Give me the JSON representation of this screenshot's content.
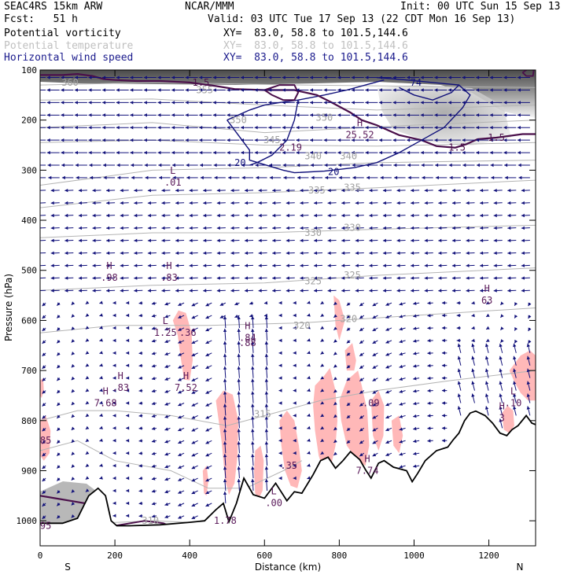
{
  "header": {
    "run": "SEAC4RS 15km ARW",
    "agency": "NCAR/MMM",
    "init": "Init: 00 UTC Sun 15 Sep 13",
    "fcst": "Fcst:   51 h",
    "valid": "Valid: 03 UTC Tue 17 Sep 13 (22 CDT Mon 16 Sep 13)"
  },
  "legend": [
    {
      "label": "Potential vorticity",
      "xy": "XY=  83.0, 58.8 to 101.5,144.6",
      "color": "#000000"
    },
    {
      "label": "Potential temperature",
      "xy": "XY=  83.0, 58.8 to 101.5,144.6",
      "color": "#c0c0c0"
    },
    {
      "label": "Horizontal wind speed",
      "xy": "XY=  83.0, 58.8 to 101.5,144.6",
      "color": "#1a1a8c"
    }
  ],
  "chart_data": {
    "type": "cross-section",
    "xlabel": "Distance (km)",
    "ylabel": "Pressure (hPa)",
    "xlim": [
      0,
      1325
    ],
    "ylim": [
      1050,
      100
    ],
    "x_ticks": [
      0,
      200,
      400,
      600,
      800,
      1000,
      1200
    ],
    "y_ticks": [
      100,
      200,
      300,
      400,
      500,
      600,
      700,
      800,
      900,
      1000
    ],
    "endpoints": {
      "left": "S",
      "right": "N"
    },
    "colors": {
      "pv": "#4a0f4a",
      "theta": "#b4b4b4",
      "wind": "#10107a",
      "rh": "#ffb8b8",
      "terrain": "#000000"
    },
    "theta_labels": [
      {
        "text": "360",
        "x": 80,
        "p": 125
      },
      {
        "text": "355",
        "x": 440,
        "p": 140
      },
      {
        "text": "350",
        "x": 530,
        "p": 200
      },
      {
        "text": "350",
        "x": 760,
        "p": 195
      },
      {
        "text": "345",
        "x": 620,
        "p": 240
      },
      {
        "text": "340",
        "x": 730,
        "p": 272
      },
      {
        "text": "340",
        "x": 825,
        "p": 272
      },
      {
        "text": "335",
        "x": 740,
        "p": 340
      },
      {
        "text": "335",
        "x": 835,
        "p": 335
      },
      {
        "text": "330",
        "x": 730,
        "p": 425
      },
      {
        "text": "330",
        "x": 835,
        "p": 415
      },
      {
        "text": "325",
        "x": 730,
        "p": 522
      },
      {
        "text": "325",
        "x": 835,
        "p": 510
      },
      {
        "text": "320",
        "x": 700,
        "p": 610
      },
      {
        "text": "320",
        "x": 825,
        "p": 597
      },
      {
        "text": "315",
        "x": 595,
        "p": 787
      },
      {
        "text": "310",
        "x": 295,
        "p": 1000
      }
    ],
    "pv_labels": [
      {
        "text": "1.5",
        "x": 430,
        "p": 125
      },
      {
        "text": "1.5",
        "x": 1115,
        "p": 255
      },
      {
        "text": "1.5",
        "x": 1220,
        "p": 235
      }
    ],
    "wind_labels": [
      {
        "text": "20",
        "x": 535,
        "p": 285
      },
      {
        "text": "20",
        "x": 785,
        "p": 303
      },
      {
        "text": "74",
        "x": 1005,
        "p": 125
      }
    ],
    "extrema": [
      {
        "kind": "L",
        "value": ".01",
        "x": 355,
        "p": 320
      },
      {
        "kind": "",
        "value": "2.19",
        "x": 670,
        "p": 250
      },
      {
        "kind": "H",
        "value": "25.52",
        "x": 855,
        "p": 225
      },
      {
        "kind": "H",
        "value": ".98",
        "x": 185,
        "p": 510
      },
      {
        "kind": "H",
        "value": ".83",
        "x": 345,
        "p": 510
      },
      {
        "kind": "L",
        "value": "1.25",
        "x": 335,
        "p": 620
      },
      {
        "kind": "",
        "value": ".36",
        "x": 395,
        "p": 620
      },
      {
        "kind": "H",
        "value": ".84",
        "x": 555,
        "p": 630
      },
      {
        "kind": "",
        "value": ".88",
        "x": 555,
        "p": 640
      },
      {
        "kind": "H",
        "value": "63",
        "x": 1195,
        "p": 555
      },
      {
        "kind": "H",
        "value": ".83",
        "x": 215,
        "p": 730
      },
      {
        "kind": "H",
        "value": "7.52",
        "x": 390,
        "p": 730
      },
      {
        "kind": "H",
        "value": "7.68",
        "x": 175,
        "p": 760
      },
      {
        "kind": "",
        "value": ".09",
        "x": 885,
        "p": 760
      },
      {
        "kind": "L",
        "value": ".10",
        "x": 1265,
        "p": 760
      },
      {
        "kind": "H",
        "value": "3",
        "x": 1235,
        "p": 790
      },
      {
        "kind": "",
        "value": ".35",
        "x": 665,
        "p": 885
      },
      {
        "kind": "H",
        "value": "7.74",
        "x": 875,
        "p": 895
      },
      {
        "kind": "L",
        "value": ".00",
        "x": 625,
        "p": 960
      },
      {
        "kind": "",
        "value": "85",
        "x": 15,
        "p": 835
      },
      {
        "kind": "",
        "value": "95",
        "x": 15,
        "p": 1005
      },
      {
        "kind": "",
        "value": "1.78",
        "x": 495,
        "p": 995
      }
    ],
    "terrain": [
      [
        0,
        1005
      ],
      [
        60,
        1005
      ],
      [
        100,
        995
      ],
      [
        130,
        950
      ],
      [
        155,
        935
      ],
      [
        175,
        950
      ],
      [
        190,
        1000
      ],
      [
        205,
        1010
      ],
      [
        240,
        1010
      ],
      [
        320,
        1008
      ],
      [
        400,
        1003
      ],
      [
        440,
        1000
      ],
      [
        470,
        978
      ],
      [
        490,
        965
      ],
      [
        505,
        1002
      ],
      [
        525,
        965
      ],
      [
        545,
        915
      ],
      [
        570,
        948
      ],
      [
        600,
        955
      ],
      [
        630,
        925
      ],
      [
        660,
        960
      ],
      [
        680,
        942
      ],
      [
        700,
        945
      ],
      [
        730,
        908
      ],
      [
        750,
        880
      ],
      [
        770,
        873
      ],
      [
        790,
        895
      ],
      [
        810,
        880
      ],
      [
        830,
        862
      ],
      [
        855,
        878
      ],
      [
        870,
        898
      ],
      [
        885,
        915
      ],
      [
        905,
        885
      ],
      [
        920,
        880
      ],
      [
        945,
        893
      ],
      [
        980,
        900
      ],
      [
        995,
        922
      ],
      [
        1010,
        905
      ],
      [
        1030,
        880
      ],
      [
        1060,
        860
      ],
      [
        1090,
        853
      ],
      [
        1105,
        838
      ],
      [
        1120,
        825
      ],
      [
        1135,
        800
      ],
      [
        1150,
        785
      ],
      [
        1165,
        781
      ],
      [
        1190,
        790
      ],
      [
        1210,
        805
      ],
      [
        1230,
        825
      ],
      [
        1248,
        830
      ],
      [
        1262,
        818
      ],
      [
        1278,
        810
      ],
      [
        1300,
        790
      ],
      [
        1315,
        805
      ],
      [
        1325,
        808
      ]
    ],
    "rh_regions": [
      [
        [
          355,
          600
        ],
        [
          370,
          580
        ],
        [
          390,
          585
        ],
        [
          405,
          625
        ],
        [
          408,
          680
        ],
        [
          400,
          720
        ],
        [
          385,
          718
        ],
        [
          375,
          670
        ],
        [
          368,
          630
        ]
      ],
      [
        [
          470,
          760
        ],
        [
          490,
          740
        ],
        [
          515,
          748
        ],
        [
          530,
          800
        ],
        [
          528,
          870
        ],
        [
          520,
          925
        ],
        [
          505,
          948
        ],
        [
          495,
          920
        ],
        [
          485,
          840
        ]
      ],
      [
        [
          575,
          860
        ],
        [
          590,
          850
        ],
        [
          598,
          880
        ],
        [
          595,
          940
        ],
        [
          585,
          955
        ],
        [
          575,
          945
        ],
        [
          572,
          900
        ]
      ],
      [
        [
          640,
          800
        ],
        [
          660,
          780
        ],
        [
          680,
          800
        ],
        [
          692,
          850
        ],
        [
          700,
          900
        ],
        [
          688,
          935
        ],
        [
          670,
          930
        ],
        [
          655,
          900
        ],
        [
          645,
          850
        ]
      ],
      [
        [
          735,
          730
        ],
        [
          760,
          710
        ],
        [
          775,
          695
        ],
        [
          790,
          740
        ],
        [
          795,
          800
        ],
        [
          790,
          850
        ],
        [
          775,
          900
        ],
        [
          760,
          905
        ],
        [
          745,
          870
        ],
        [
          735,
          820
        ],
        [
          730,
          770
        ]
      ],
      [
        [
          800,
          760
        ],
        [
          820,
          720
        ],
        [
          850,
          700
        ],
        [
          860,
          730
        ],
        [
          875,
          780
        ],
        [
          880,
          850
        ],
        [
          870,
          890
        ],
        [
          850,
          880
        ],
        [
          820,
          850
        ],
        [
          805,
          800
        ]
      ],
      [
        [
          815,
          660
        ],
        [
          835,
          645
        ],
        [
          845,
          680
        ],
        [
          840,
          700
        ],
        [
          820,
          700
        ]
      ],
      [
        [
          885,
          760
        ],
        [
          905,
          740
        ],
        [
          920,
          770
        ],
        [
          918,
          830
        ],
        [
          905,
          860
        ],
        [
          890,
          830
        ]
      ],
      [
        [
          940,
          800
        ],
        [
          960,
          790
        ],
        [
          970,
          830
        ],
        [
          960,
          865
        ],
        [
          945,
          850
        ]
      ],
      [
        [
          1020,
          895
        ],
        [
          1035,
          885
        ],
        [
          1040,
          905
        ],
        [
          1030,
          918
        ],
        [
          1020,
          912
        ]
      ],
      [
        [
          785,
          550
        ],
        [
          800,
          560
        ],
        [
          815,
          600
        ],
        [
          800,
          640
        ],
        [
          790,
          610
        ]
      ],
      [
        [
          1255,
          700
        ],
        [
          1285,
          670
        ],
        [
          1310,
          660
        ],
        [
          1325,
          670
        ],
        [
          1325,
          760
        ],
        [
          1305,
          760
        ],
        [
          1285,
          745
        ],
        [
          1270,
          725
        ]
      ],
      [
        [
          1235,
          785
        ],
        [
          1250,
          770
        ],
        [
          1265,
          780
        ],
        [
          1268,
          810
        ],
        [
          1255,
          825
        ],
        [
          1240,
          818
        ]
      ],
      [
        [
          0,
          800
        ],
        [
          15,
          790
        ],
        [
          28,
          820
        ],
        [
          25,
          865
        ],
        [
          10,
          880
        ],
        [
          0,
          870
        ]
      ],
      [
        [
          0,
          720
        ],
        [
          8,
          715
        ],
        [
          10,
          740
        ],
        [
          4,
          755
        ],
        [
          0,
          750
        ]
      ],
      [
        [
          435,
          900
        ],
        [
          445,
          890
        ],
        [
          450,
          920
        ],
        [
          445,
          950
        ],
        [
          438,
          945
        ]
      ]
    ]
  }
}
